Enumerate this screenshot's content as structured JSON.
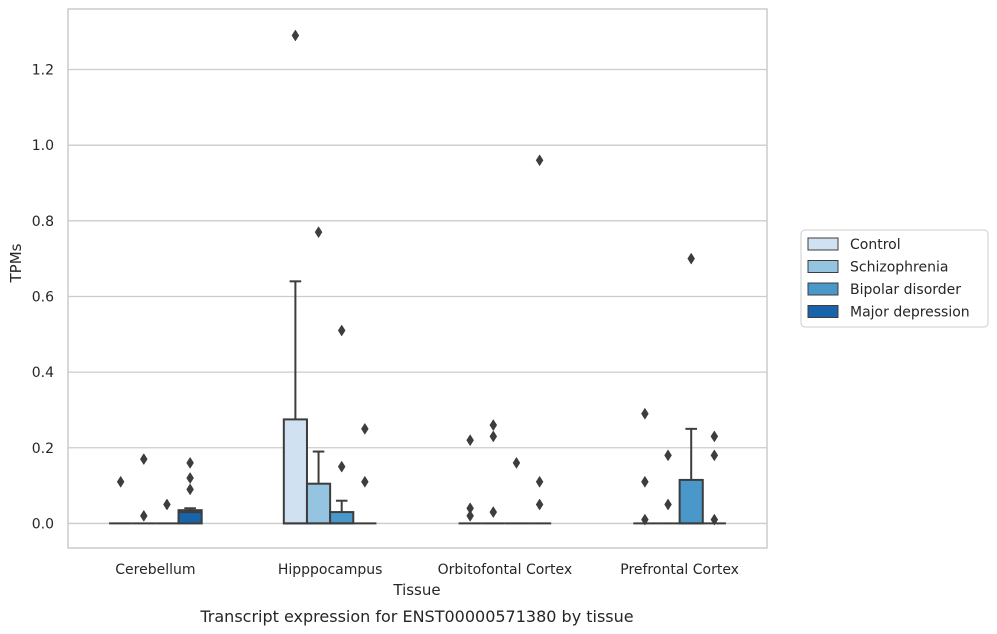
{
  "chart_data": {
    "type": "box",
    "title": "Transcript expression for ENST00000571380 by tissue",
    "xlabel": "Tissue",
    "ylabel": "TPMs",
    "ylim": [
      -0.065,
      1.36
    ],
    "yticks": [
      "0.0",
      "0.2",
      "0.4",
      "0.6",
      "0.8",
      "1.0",
      "1.2"
    ],
    "ytick_values": [
      0,
      0.2,
      0.4,
      0.6,
      0.8,
      1.0,
      1.2
    ],
    "grid": "horizontal",
    "legend_position": "right",
    "categories": [
      "Cerebellum",
      "Hipppocampus",
      "Orbitofontal Cortex",
      "Prefrontal Cortex"
    ],
    "series": [
      {
        "name": "Control",
        "color": "#d0e1f2",
        "boxes": [
          {
            "q1": 0,
            "median": 0,
            "q3": 0,
            "whisker_low": 0,
            "whisker_high": 0,
            "outliers": [
              0.11
            ]
          },
          {
            "q1": 0,
            "median": 0,
            "q3": 0.275,
            "whisker_low": 0,
            "whisker_high": 0.64,
            "outliers": [
              1.29
            ]
          },
          {
            "q1": 0,
            "median": 0,
            "q3": 0,
            "whisker_low": 0,
            "whisker_high": 0,
            "outliers": [
              0.22,
              0.04,
              0.02
            ]
          },
          {
            "q1": 0,
            "median": 0,
            "q3": 0,
            "whisker_low": 0,
            "whisker_high": 0,
            "outliers": [
              0.29,
              0.11,
              0.01
            ]
          }
        ]
      },
      {
        "name": "Schizophrenia",
        "color": "#94c4df",
        "boxes": [
          {
            "q1": 0,
            "median": 0,
            "q3": 0,
            "whisker_low": 0,
            "whisker_high": 0,
            "outliers": [
              0.17,
              0.02
            ]
          },
          {
            "q1": 0,
            "median": 0,
            "q3": 0.105,
            "whisker_low": 0,
            "whisker_high": 0.19,
            "outliers": [
              0.77
            ]
          },
          {
            "q1": 0,
            "median": 0,
            "q3": 0,
            "whisker_low": 0,
            "whisker_high": 0,
            "outliers": [
              0.26,
              0.23,
              0.03
            ]
          },
          {
            "q1": 0,
            "median": 0,
            "q3": 0,
            "whisker_low": 0,
            "whisker_high": 0,
            "outliers": [
              0.18,
              0.05
            ]
          }
        ]
      },
      {
        "name": "Bipolar disorder",
        "color": "#4a98c9",
        "boxes": [
          {
            "q1": 0,
            "median": 0,
            "q3": 0,
            "whisker_low": 0,
            "whisker_high": 0,
            "outliers": [
              0.05
            ]
          },
          {
            "q1": 0,
            "median": 0,
            "q3": 0.03,
            "whisker_low": 0,
            "whisker_high": 0.06,
            "outliers": [
              0.51,
              0.15
            ]
          },
          {
            "q1": 0,
            "median": 0,
            "q3": 0,
            "whisker_low": 0,
            "whisker_high": 0,
            "outliers": [
              0.16
            ]
          },
          {
            "q1": 0,
            "median": 0,
            "q3": 0.115,
            "whisker_low": 0,
            "whisker_high": 0.25,
            "outliers": [
              0.7
            ]
          }
        ]
      },
      {
        "name": "Major depression",
        "color": "#1764ab",
        "boxes": [
          {
            "q1": 0,
            "median": 0.03,
            "q3": 0.035,
            "whisker_low": 0,
            "whisker_high": 0.04,
            "outliers": [
              0.16,
              0.12,
              0.09
            ]
          },
          {
            "q1": 0,
            "median": 0,
            "q3": 0,
            "whisker_low": 0,
            "whisker_high": 0,
            "outliers": [
              0.25,
              0.11
            ]
          },
          {
            "q1": 0,
            "median": 0,
            "q3": 0,
            "whisker_low": 0,
            "whisker_high": 0,
            "outliers": [
              0.96,
              0.11,
              0.05
            ]
          },
          {
            "q1": 0,
            "median": 0,
            "q3": 0,
            "whisker_low": 0,
            "whisker_high": 0,
            "outliers": [
              0.23,
              0.18,
              0.01
            ]
          }
        ]
      }
    ]
  }
}
